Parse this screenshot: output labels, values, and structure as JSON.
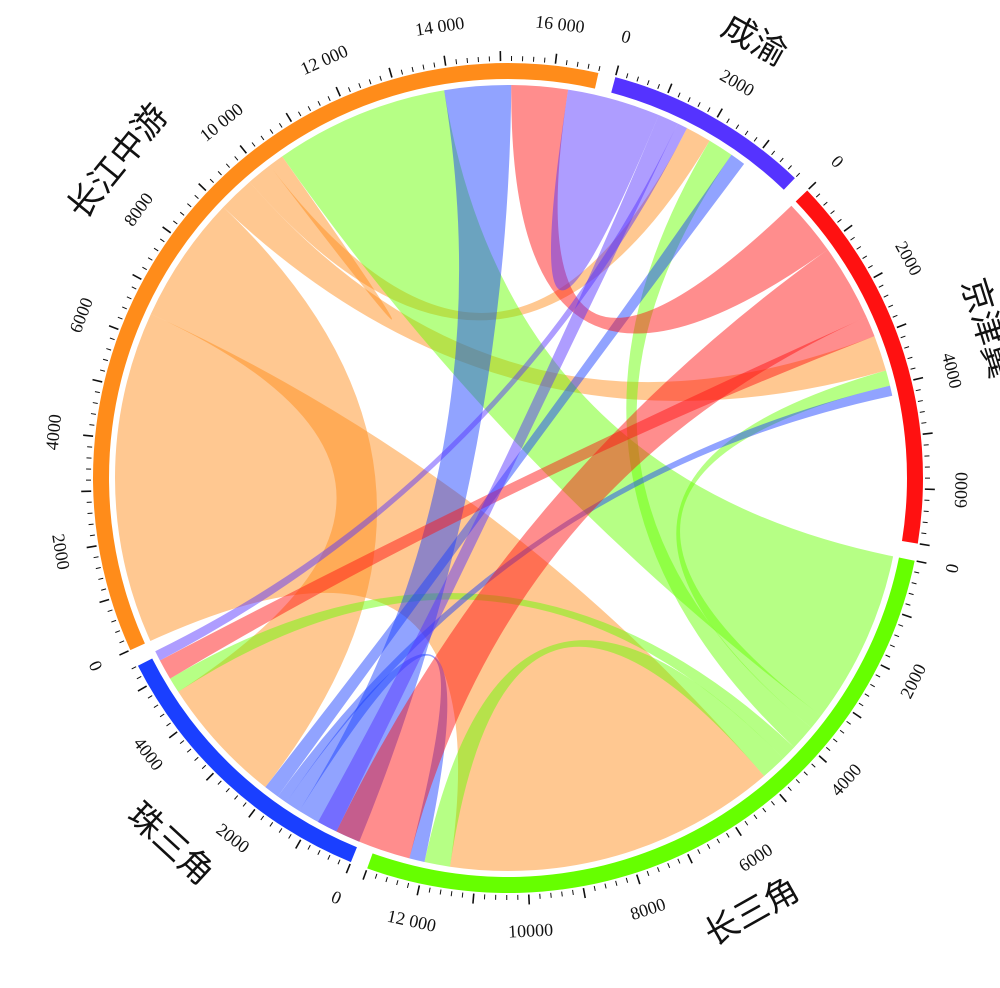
{
  "chart_data": {
    "type": "chord",
    "title": "",
    "segments": [
      {
        "name": "长江中游",
        "total": 16800,
        "color": "#ff8c1a",
        "ticks": [
          "0",
          "2000",
          "4000",
          "6000",
          "8000",
          "10 000",
          "12 000",
          "14 000",
          "16 000"
        ]
      },
      {
        "name": "成渝",
        "total": 3800,
        "color": "#5533ff",
        "ticks": [
          "0",
          "2000"
        ]
      },
      {
        "name": "京津冀",
        "total": 7000,
        "color": "#ff1111",
        "ticks": [
          "0",
          "2000",
          "4000",
          "6000"
        ]
      },
      {
        "name": "长三角",
        "total": 13000,
        "color": "#66ff00",
        "ticks": [
          "0",
          "2000",
          "4000",
          "6000",
          "8000",
          "10000",
          "12 000"
        ]
      },
      {
        "name": "珠三角",
        "total": 5400,
        "color": "#1a3fff",
        "ticks": [
          "0",
          "2000",
          "4000"
        ]
      }
    ],
    "flows": [
      {
        "from": "长江中游",
        "to": "长三角",
        "value": 6500
      },
      {
        "from": "长江中游",
        "to": "珠三角",
        "value": 2500
      },
      {
        "from": "长江中游",
        "to": "京津冀",
        "value": 700
      },
      {
        "from": "长江中游",
        "to": "成渝",
        "value": 500
      },
      {
        "from": "长江中游",
        "to": "长江中游",
        "value": 150
      },
      {
        "from": "长三角",
        "to": "长江中游",
        "value": 3400
      },
      {
        "from": "长三角",
        "to": "京津冀",
        "value": 300
      },
      {
        "from": "长三角",
        "to": "成渝",
        "value": 500
      },
      {
        "from": "长三角",
        "to": "珠三角",
        "value": 300
      },
      {
        "from": "长三角",
        "to": "长三角",
        "value": 500
      },
      {
        "from": "珠三角",
        "to": "长江中游",
        "value": 1300
      },
      {
        "from": "珠三角",
        "to": "长三角",
        "value": 300
      },
      {
        "from": "珠三角",
        "to": "京津冀",
        "value": 200
      },
      {
        "from": "珠三角",
        "to": "成渝",
        "value": 300
      },
      {
        "from": "京津冀",
        "to": "长江中游",
        "value": 1100
      },
      {
        "from": "京津冀",
        "to": "长三角",
        "value": 1500
      },
      {
        "from": "京津冀",
        "to": "珠三角",
        "value": 400
      },
      {
        "from": "成渝",
        "to": "长江中游",
        "value": 1000
      },
      {
        "from": "成渝",
        "to": "长三角",
        "value": 400
      },
      {
        "from": "成渝",
        "to": "珠三角",
        "value": 200
      }
    ]
  }
}
